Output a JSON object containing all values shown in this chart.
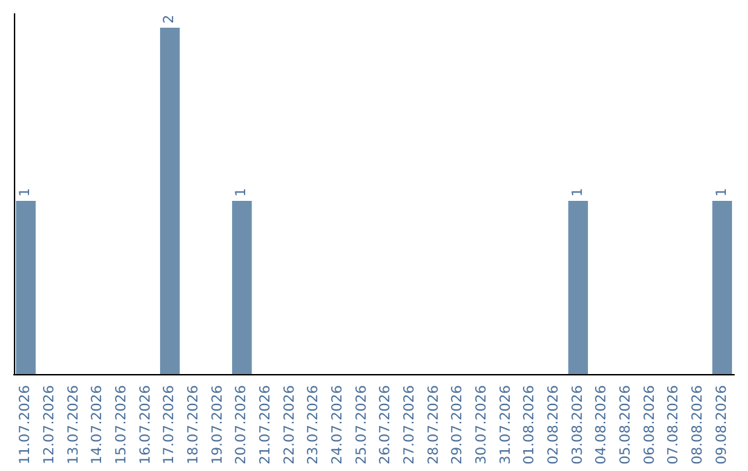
{
  "chart_data": {
    "type": "bar",
    "categories": [
      "11.07.2026",
      "12.07.2026",
      "13.07.2026",
      "14.07.2026",
      "15.07.2026",
      "16.07.2026",
      "17.07.2026",
      "18.07.2026",
      "19.07.2026",
      "20.07.2026",
      "21.07.2026",
      "22.07.2026",
      "23.07.2026",
      "24.07.2026",
      "25.07.2026",
      "26.07.2026",
      "27.07.2026",
      "28.07.2026",
      "29.07.2026",
      "30.07.2026",
      "31.07.2026",
      "01.08.2026",
      "02.08.2026",
      "03.08.2026",
      "04.08.2026",
      "05.08.2026",
      "06.08.2026",
      "07.08.2026",
      "08.08.2026",
      "09.08.2026"
    ],
    "values": [
      1,
      0,
      0,
      0,
      0,
      0,
      2,
      0,
      0,
      1,
      0,
      0,
      0,
      0,
      0,
      0,
      0,
      0,
      0,
      0,
      0,
      0,
      0,
      1,
      0,
      0,
      0,
      0,
      0,
      1
    ],
    "color": "#6d8fad",
    "value_labels": [
      "1",
      null,
      null,
      null,
      null,
      null,
      "2",
      null,
      null,
      "1",
      null,
      null,
      null,
      null,
      null,
      null,
      null,
      null,
      null,
      null,
      null,
      null,
      null,
      "1",
      null,
      null,
      null,
      null,
      null,
      "1"
    ],
    "tick_labels": "x"
  }
}
